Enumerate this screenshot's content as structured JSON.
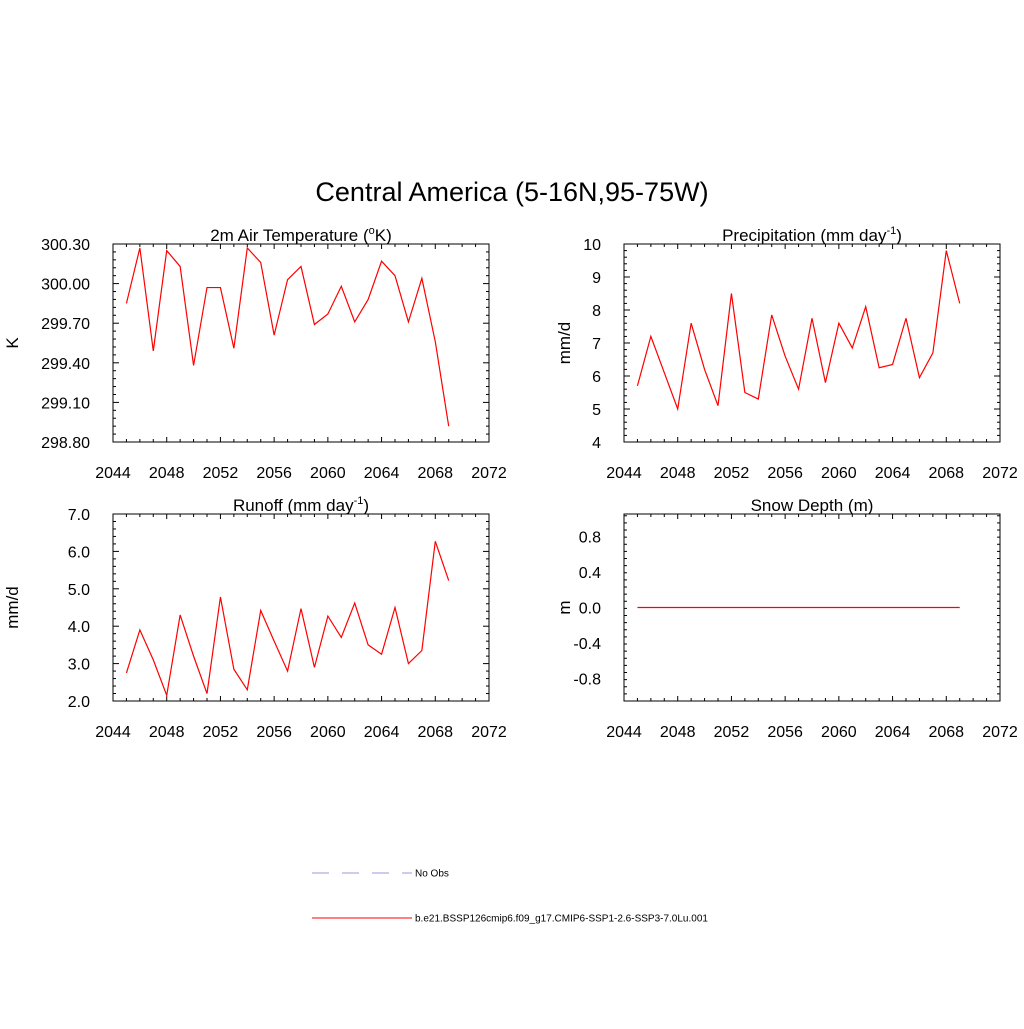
{
  "figure": {
    "title": "Central America (5-16N,95-75W)"
  },
  "colors": {
    "model_line": "#ff0000",
    "obs_line": "#9999dd",
    "frame": "#000000"
  },
  "legend": {
    "placement": "bottom-center",
    "entries": [
      {
        "label": "No Obs",
        "style": "dashed",
        "color": "#9999dd"
      },
      {
        "label": "b.e21.BSSP126cmip6.f09_g17.CMIP6-SSP1-2.6-SSP3-7.0Lu.001",
        "style": "solid",
        "color": "#ff0000"
      }
    ]
  },
  "chart_data": [
    {
      "type": "line",
      "title_main": "2m Air Temperature (",
      "title_sup_left": "o",
      "title_after": "K)",
      "ylabel": "K",
      "xlim": [
        2044,
        2072
      ],
      "ylim": [
        298.8,
        300.3
      ],
      "xticks": [
        "2044",
        "2048",
        "2052",
        "2056",
        "2060",
        "2064",
        "2068",
        "2072"
      ],
      "yticks": [
        "298.80",
        "299.10",
        "299.40",
        "299.70",
        "300.00",
        "300.30"
      ],
      "series": [
        {
          "x": [
            2045,
            2046,
            2047,
            2048,
            2049,
            2050,
            2051,
            2052,
            2053,
            2054,
            2055,
            2056,
            2057,
            2058,
            2059,
            2060,
            2061,
            2062,
            2063,
            2064,
            2065,
            2066,
            2067,
            2068,
            2069
          ],
          "values": [
            299.85,
            300.27,
            299.49,
            300.25,
            300.13,
            299.38,
            299.97,
            299.97,
            299.51,
            300.27,
            300.16,
            299.61,
            300.03,
            300.13,
            299.69,
            299.77,
            299.98,
            299.71,
            299.88,
            300.17,
            300.06,
            299.71,
            300.04,
            299.56,
            298.92
          ]
        }
      ]
    },
    {
      "type": "line",
      "title_main": "Precipitation (mm day",
      "title_sup": "-1",
      "title_after": ")",
      "ylabel": "mm/d",
      "xlim": [
        2044,
        2072
      ],
      "ylim": [
        4,
        10
      ],
      "xticks": [
        "2044",
        "2048",
        "2052",
        "2056",
        "2060",
        "2064",
        "2068",
        "2072"
      ],
      "yticks": [
        "4",
        "5",
        "6",
        "7",
        "8",
        "9",
        "10"
      ],
      "series": [
        {
          "x": [
            2045,
            2046,
            2047,
            2048,
            2049,
            2050,
            2051,
            2052,
            2053,
            2054,
            2055,
            2056,
            2057,
            2058,
            2059,
            2060,
            2061,
            2062,
            2063,
            2064,
            2065,
            2066,
            2067,
            2068,
            2069
          ],
          "values": [
            5.7,
            7.2,
            6.1,
            5.0,
            7.6,
            6.2,
            5.1,
            8.5,
            5.5,
            5.3,
            7.85,
            6.6,
            5.6,
            7.75,
            5.8,
            7.6,
            6.85,
            8.1,
            6.25,
            6.35,
            7.75,
            5.95,
            6.7,
            9.8,
            8.2
          ]
        }
      ]
    },
    {
      "type": "line",
      "title_main": "Runoff (mm day",
      "title_sup": "-1",
      "title_after": ")",
      "ylabel": "mm/d",
      "xlim": [
        2044,
        2072
      ],
      "ylim": [
        2,
        7
      ],
      "xticks": [
        "2044",
        "2048",
        "2052",
        "2056",
        "2060",
        "2064",
        "2068",
        "2072"
      ],
      "yticks": [
        "2.0",
        "3.0",
        "4.0",
        "5.0",
        "6.0",
        "7.0"
      ],
      "series": [
        {
          "x": [
            2045,
            2046,
            2047,
            2048,
            2049,
            2050,
            2051,
            2052,
            2053,
            2054,
            2055,
            2056,
            2057,
            2058,
            2059,
            2060,
            2061,
            2062,
            2063,
            2064,
            2065,
            2066,
            2067,
            2068,
            2069
          ],
          "values": [
            2.75,
            3.9,
            3.1,
            2.15,
            4.3,
            3.2,
            2.2,
            4.78,
            2.85,
            2.3,
            4.42,
            3.6,
            2.8,
            4.47,
            2.9,
            4.27,
            3.7,
            4.62,
            3.5,
            3.25,
            4.5,
            3.0,
            3.35,
            6.27,
            5.22
          ]
        }
      ]
    },
    {
      "type": "line",
      "title_main": "Snow Depth (m)",
      "ylabel": "m",
      "xlim": [
        2044,
        2072
      ],
      "ylim": [
        -1.05,
        1.05
      ],
      "xticks": [
        "2044",
        "2048",
        "2052",
        "2056",
        "2060",
        "2064",
        "2068",
        "2072"
      ],
      "yticks": [
        "-0.8",
        "-0.4",
        "0.0",
        "0.4",
        "0.8"
      ],
      "ytick_values": [
        -0.8,
        -0.4,
        0.0,
        0.4,
        0.8
      ],
      "series": [
        {
          "x": [
            2045,
            2046,
            2047,
            2048,
            2049,
            2050,
            2051,
            2052,
            2053,
            2054,
            2055,
            2056,
            2057,
            2058,
            2059,
            2060,
            2061,
            2062,
            2063,
            2064,
            2065,
            2066,
            2067,
            2068,
            2069
          ],
          "values": [
            0,
            0,
            0,
            0,
            0,
            0,
            0,
            0,
            0,
            0,
            0,
            0,
            0,
            0,
            0,
            0,
            0,
            0,
            0,
            0,
            0,
            0,
            0,
            0,
            0
          ]
        }
      ]
    }
  ]
}
